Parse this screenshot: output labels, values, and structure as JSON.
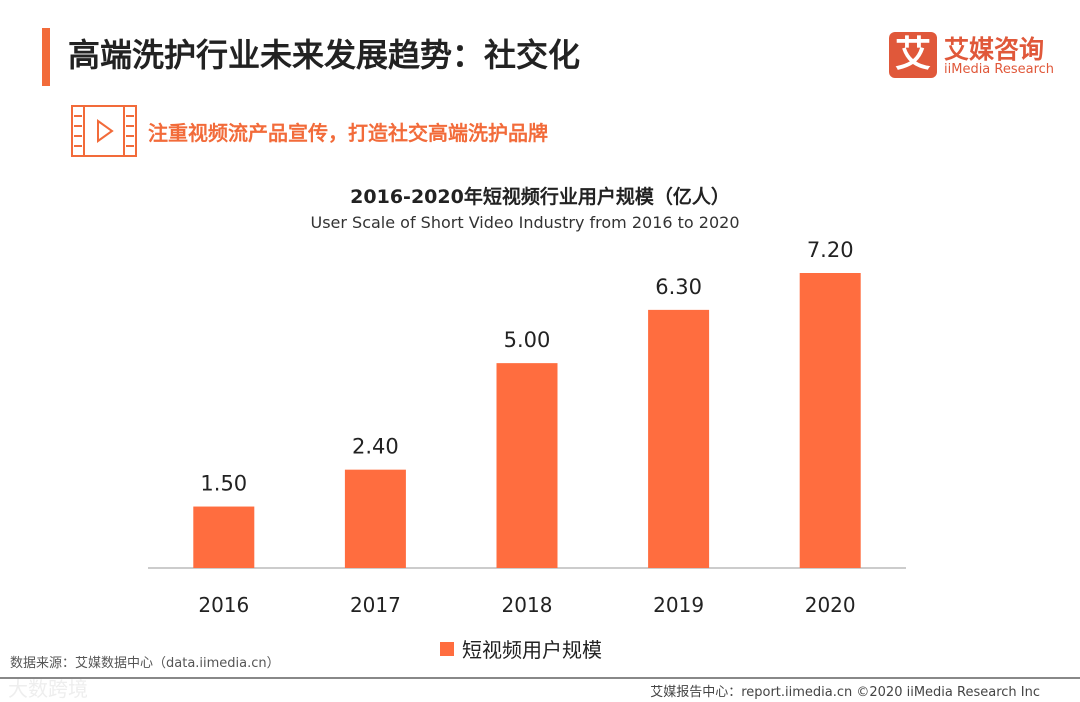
{
  "header": {
    "title": "高端洗护行业未来发展趋势：社交化",
    "subtitle": "注重视频流产品宣传，打造社交高端洗护品牌"
  },
  "logo": {
    "mark": "艾",
    "cn": "艾媒咨询",
    "en": "iiMedia Research"
  },
  "colors": {
    "accent": "#f26b3a",
    "bar": "#ff6d3f"
  },
  "chart_data": {
    "type": "bar",
    "title": "2016-2020年短视频行业用户规模（亿人）",
    "subtitle": "User Scale of Short Video Industry from 2016 to 2020",
    "categories": [
      "2016",
      "2017",
      "2018",
      "2019",
      "2020"
    ],
    "values": [
      1.5,
      2.4,
      5.0,
      6.3,
      7.2
    ],
    "labels": [
      "1.50",
      "2.40",
      "5.00",
      "6.30",
      "7.20"
    ],
    "legend": [
      "短视频用户规模"
    ],
    "legend_position": "bottom",
    "ylim": [
      0,
      7.2
    ],
    "grid": false
  },
  "footer": {
    "source": "数据来源：艾媒数据中心（data.iimedia.cn）",
    "right": "艾媒报告中心：report.iimedia.cn   ©2020  iiMedia Research  Inc",
    "watermark": "大数跨境"
  }
}
